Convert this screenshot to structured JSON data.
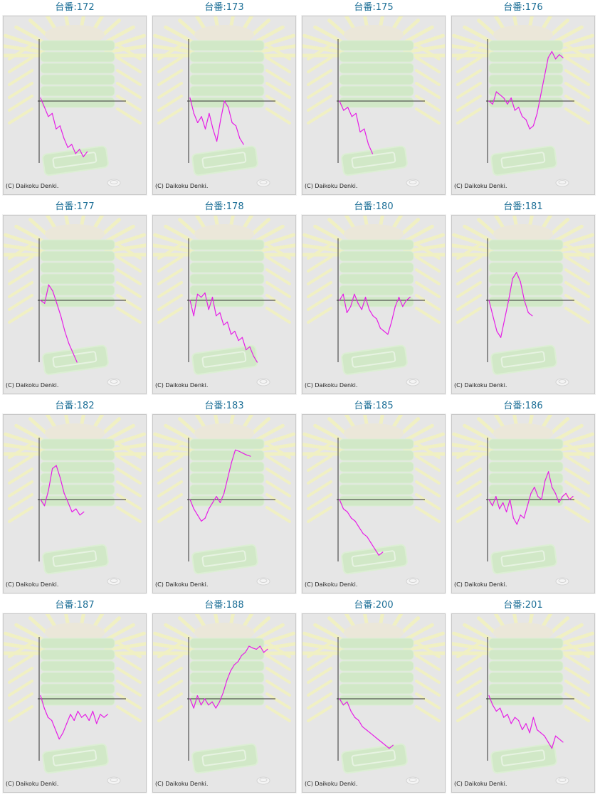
{
  "colors": {
    "title": "#1b6e96",
    "line": "#e61ee6",
    "axis": "#333333",
    "panel_bg": "#e6e6e6",
    "watermark_green": "#cfe9c4",
    "watermark_rays": "#f2f2c0"
  },
  "icons": {
    "background": "machine-watermark-icon",
    "coin": "coin-icon"
  },
  "copyright": "(C) Daikoku Denki.",
  "chart_data": [
    {
      "type": "line",
      "title": "台番:172",
      "ylim": [
        -1,
        1
      ],
      "x": [
        0,
        1,
        2,
        3,
        4,
        5,
        6,
        7,
        8,
        9,
        10,
        11,
        12
      ],
      "values": [
        0.05,
        -0.1,
        -0.25,
        -0.2,
        -0.45,
        -0.4,
        -0.6,
        -0.75,
        -0.7,
        -0.85,
        -0.78,
        -0.9,
        -0.82
      ]
    },
    {
      "type": "line",
      "title": "台番:173",
      "ylim": [
        -1,
        1
      ],
      "x": [
        0,
        1,
        2,
        3,
        4,
        5,
        6,
        7,
        8,
        9,
        10,
        11,
        12,
        13,
        14
      ],
      "values": [
        0.05,
        -0.2,
        -0.35,
        -0.25,
        -0.45,
        -0.2,
        -0.45,
        -0.65,
        -0.3,
        0.0,
        -0.1,
        -0.35,
        -0.4,
        -0.6,
        -0.7
      ]
    },
    {
      "type": "line",
      "title": "台番:175",
      "ylim": [
        -1,
        1
      ],
      "x": [
        0,
        1,
        2,
        3,
        4,
        5,
        6,
        7,
        8
      ],
      "values": [
        0.0,
        -0.15,
        -0.1,
        -0.25,
        -0.2,
        -0.5,
        -0.45,
        -0.7,
        -0.85
      ]
    },
    {
      "type": "line",
      "title": "台番:176",
      "ylim": [
        -1,
        1
      ],
      "x": [
        0,
        1,
        2,
        3,
        4,
        5,
        6,
        7,
        8,
        9,
        10,
        11,
        12,
        13,
        14,
        15,
        16,
        17,
        18,
        19,
        20
      ],
      "values": [
        0.0,
        -0.05,
        0.15,
        0.1,
        0.05,
        -0.05,
        0.05,
        -0.15,
        -0.1,
        -0.25,
        -0.3,
        -0.45,
        -0.4,
        -0.2,
        0.1,
        0.4,
        0.7,
        0.8,
        0.68,
        0.75,
        0.7
      ]
    },
    {
      "type": "line",
      "title": "台番:177",
      "ylim": [
        -1,
        1
      ],
      "x": [
        0,
        1,
        2,
        3,
        4,
        5,
        6,
        7,
        8,
        9
      ],
      "values": [
        0.0,
        -0.05,
        0.25,
        0.15,
        -0.05,
        -0.25,
        -0.5,
        -0.7,
        -0.85,
        -1.0
      ]
    },
    {
      "type": "line",
      "title": "台番:178",
      "ylim": [
        -1,
        1
      ],
      "x": [
        0,
        1,
        2,
        3,
        4,
        5,
        6,
        7,
        8,
        9,
        10,
        11,
        12,
        13,
        14,
        15,
        16,
        17,
        18
      ],
      "values": [
        0.0,
        -0.25,
        0.1,
        0.05,
        0.12,
        -0.15,
        0.05,
        -0.25,
        -0.2,
        -0.4,
        -0.35,
        -0.55,
        -0.5,
        -0.65,
        -0.6,
        -0.8,
        -0.75,
        -0.9,
        -1.0
      ]
    },
    {
      "type": "line",
      "title": "台番:180",
      "ylim": [
        -1,
        1
      ],
      "x": [
        0,
        1,
        2,
        3,
        4,
        5,
        6,
        7,
        8,
        9,
        10,
        11,
        12,
        13,
        14,
        15,
        16,
        17,
        18,
        19
      ],
      "values": [
        0.0,
        0.1,
        -0.2,
        -0.1,
        0.1,
        -0.05,
        -0.15,
        0.05,
        -0.15,
        -0.25,
        -0.3,
        -0.45,
        -0.5,
        -0.55,
        -0.35,
        -0.1,
        0.05,
        -0.1,
        0.0,
        0.05
      ]
    },
    {
      "type": "line",
      "title": "台番:181",
      "ylim": [
        -1,
        1
      ],
      "x": [
        0,
        1,
        2,
        3,
        4,
        5,
        6,
        7,
        8,
        9,
        10,
        11
      ],
      "values": [
        0.0,
        -0.25,
        -0.5,
        -0.6,
        -0.3,
        0.0,
        0.35,
        0.45,
        0.3,
        0.0,
        -0.2,
        -0.25
      ]
    },
    {
      "type": "line",
      "title": "台番:182",
      "ylim": [
        -1,
        1
      ],
      "x": [
        0,
        1,
        2,
        3,
        4,
        5,
        6,
        7,
        8,
        9,
        10,
        11
      ],
      "values": [
        0.0,
        -0.1,
        0.15,
        0.5,
        0.55,
        0.35,
        0.1,
        -0.05,
        -0.2,
        -0.15,
        -0.25,
        -0.2
      ]
    },
    {
      "type": "line",
      "title": "台番:183",
      "ylim": [
        -1,
        1
      ],
      "x": [
        0,
        1,
        2,
        3,
        4,
        5,
        6,
        7,
        8,
        9,
        10,
        11,
        12,
        13,
        14,
        15,
        16
      ],
      "values": [
        0.0,
        -0.15,
        -0.25,
        -0.35,
        -0.3,
        -0.15,
        -0.05,
        0.05,
        -0.05,
        0.1,
        0.35,
        0.6,
        0.8,
        0.78,
        0.75,
        0.72,
        0.7
      ]
    },
    {
      "type": "line",
      "title": "台番:185",
      "ylim": [
        -1,
        1
      ],
      "x": [
        0,
        1,
        2,
        3,
        4,
        5,
        6,
        7,
        8,
        9,
        10,
        11
      ],
      "values": [
        0.0,
        -0.15,
        -0.2,
        -0.3,
        -0.35,
        -0.45,
        -0.55,
        -0.6,
        -0.7,
        -0.8,
        -0.9,
        -0.85
      ]
    },
    {
      "type": "line",
      "title": "台番:186",
      "ylim": [
        -1,
        1
      ],
      "x": [
        0,
        1,
        2,
        3,
        4,
        5,
        6,
        7,
        8,
        9,
        10,
        11,
        12,
        13,
        14,
        15,
        16,
        17,
        18,
        19,
        20,
        21,
        22,
        23,
        24
      ],
      "values": [
        0.0,
        -0.1,
        0.05,
        -0.15,
        -0.05,
        -0.2,
        0.0,
        -0.3,
        -0.4,
        -0.25,
        -0.3,
        -0.1,
        0.1,
        0.2,
        0.05,
        0.0,
        0.3,
        0.45,
        0.2,
        0.1,
        -0.05,
        0.05,
        0.1,
        0.0,
        0.05
      ]
    },
    {
      "type": "line",
      "title": "台番:187",
      "ylim": [
        -1,
        1
      ],
      "x": [
        0,
        1,
        2,
        3,
        4,
        5,
        6,
        7,
        8,
        9,
        10,
        11,
        12,
        13,
        14,
        15,
        16,
        17,
        18
      ],
      "values": [
        0.05,
        -0.15,
        -0.3,
        -0.35,
        -0.5,
        -0.65,
        -0.55,
        -0.4,
        -0.25,
        -0.35,
        -0.2,
        -0.3,
        -0.25,
        -0.35,
        -0.2,
        -0.4,
        -0.25,
        -0.3,
        -0.25
      ]
    },
    {
      "type": "line",
      "title": "台番:188",
      "ylim": [
        -1,
        1
      ],
      "x": [
        0,
        1,
        2,
        3,
        4,
        5,
        6,
        7,
        8,
        9,
        10,
        11,
        12,
        13,
        14,
        15,
        16,
        17,
        18,
        19,
        20,
        21
      ],
      "values": [
        0.0,
        -0.15,
        0.05,
        -0.1,
        0.0,
        -0.1,
        -0.05,
        -0.15,
        -0.05,
        0.1,
        0.3,
        0.45,
        0.55,
        0.6,
        0.7,
        0.75,
        0.85,
        0.82,
        0.8,
        0.85,
        0.75,
        0.8
      ]
    },
    {
      "type": "line",
      "title": "台番:200",
      "ylim": [
        -1,
        1
      ],
      "x": [
        0,
        1,
        2,
        3,
        4,
        5,
        6,
        7,
        8,
        9,
        10,
        11,
        12,
        13,
        14
      ],
      "values": [
        0.0,
        -0.1,
        -0.05,
        -0.2,
        -0.3,
        -0.35,
        -0.45,
        -0.5,
        -0.55,
        -0.6,
        -0.65,
        -0.7,
        -0.75,
        -0.8,
        -0.75
      ]
    },
    {
      "type": "line",
      "title": "台番:201",
      "ylim": [
        -1,
        1
      ],
      "x": [
        0,
        1,
        2,
        3,
        4,
        5,
        6,
        7,
        8,
        9,
        10,
        11,
        12,
        13,
        14,
        15,
        16,
        17,
        18,
        19,
        20
      ],
      "values": [
        0.05,
        -0.1,
        -0.2,
        -0.15,
        -0.3,
        -0.25,
        -0.4,
        -0.3,
        -0.35,
        -0.5,
        -0.4,
        -0.55,
        -0.3,
        -0.5,
        -0.55,
        -0.6,
        -0.7,
        -0.8,
        -0.6,
        -0.65,
        -0.7
      ]
    }
  ]
}
